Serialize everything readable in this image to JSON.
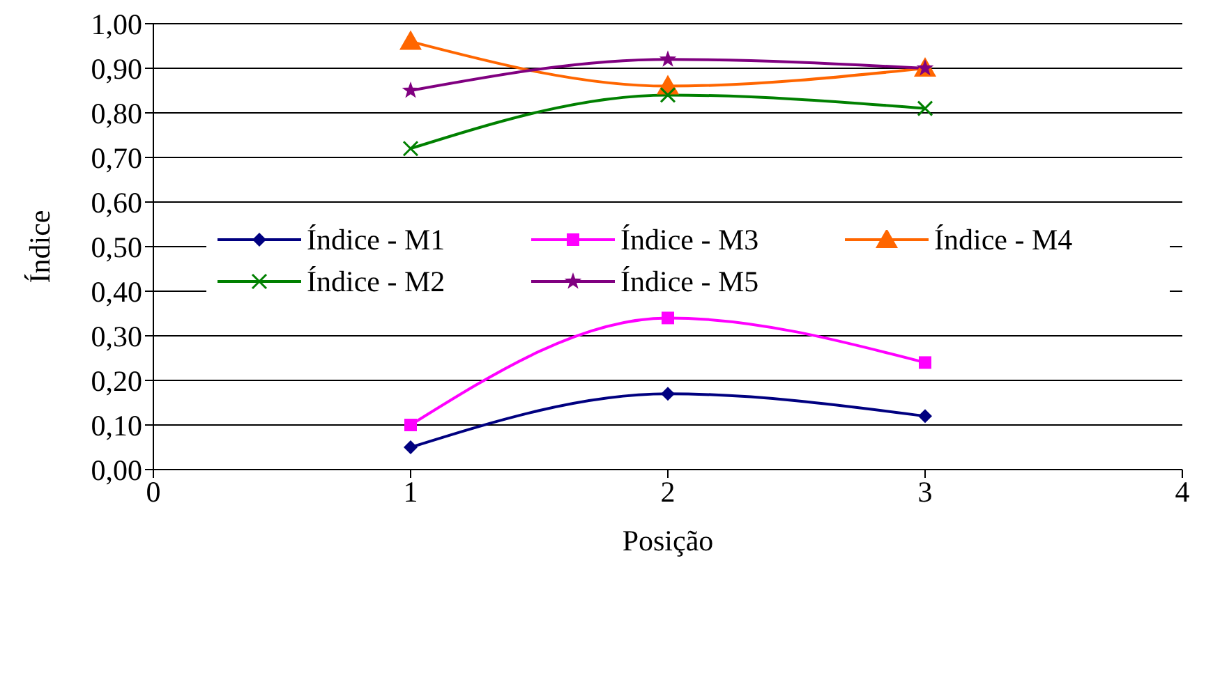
{
  "chart_data": {
    "type": "line",
    "xlabel": "Posição",
    "ylabel": "Índice",
    "x": [
      1,
      2,
      3
    ],
    "series": [
      {
        "name": "Índice - M1",
        "color": "#000080",
        "marker": "diamond",
        "values": [
          0.05,
          0.17,
          0.12
        ]
      },
      {
        "name": "Índice - M3",
        "color": "#ff00ff",
        "marker": "square",
        "values": [
          0.1,
          0.34,
          0.24
        ]
      },
      {
        "name": "Índice - M4",
        "color": "#ff6600",
        "marker": "triangle",
        "values": [
          0.96,
          0.86,
          0.9
        ]
      },
      {
        "name": "Índice - M2",
        "color": "#008000",
        "marker": "cross",
        "values": [
          0.72,
          0.84,
          0.81
        ]
      },
      {
        "name": "Índice - M5",
        "color": "#800080",
        "marker": "star",
        "values": [
          0.85,
          0.92,
          0.9
        ]
      }
    ],
    "xlim": [
      0,
      4
    ],
    "xticks": [
      0,
      1,
      2,
      3,
      4
    ],
    "ylim": [
      0,
      1
    ],
    "yticks": [
      {
        "value": 0,
        "label": "0,00"
      },
      {
        "value": 0.1,
        "label": "0,10"
      },
      {
        "value": 0.2,
        "label": "0,20"
      },
      {
        "value": 0.3,
        "label": "0,30"
      },
      {
        "value": 0.4,
        "label": "0,40"
      },
      {
        "value": 0.5,
        "label": "0,50"
      },
      {
        "value": 0.6,
        "label": "0,60"
      },
      {
        "value": 0.7,
        "label": "0,70"
      },
      {
        "value": 0.8,
        "label": "0,80"
      },
      {
        "value": 0.9,
        "label": "0,90"
      },
      {
        "value": 1,
        "label": "1,00"
      }
    ],
    "grid": "y",
    "legend": "center"
  }
}
